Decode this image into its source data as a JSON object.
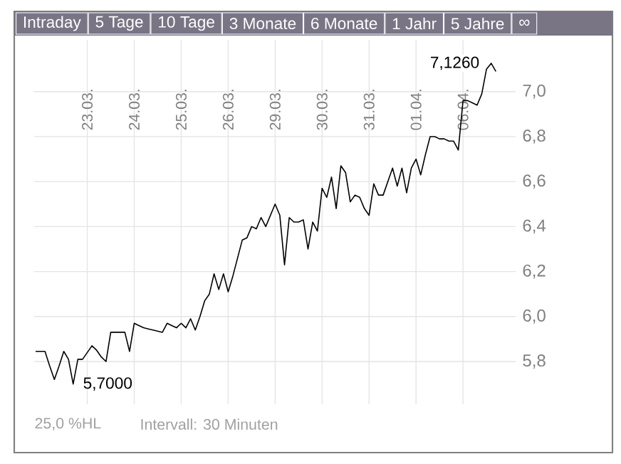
{
  "chart_data": {
    "type": "line",
    "categories": [
      null,
      null,
      null,
      null,
      null,
      null,
      null,
      null,
      null,
      null,
      null,
      "23.03.",
      null,
      null,
      null,
      null,
      null,
      null,
      null,
      null,
      null,
      "24.03.",
      null,
      null,
      null,
      null,
      null,
      null,
      null,
      null,
      null,
      "25.03.",
      null,
      null,
      null,
      null,
      null,
      null,
      null,
      null,
      null,
      "26.03.",
      null,
      null,
      null,
      null,
      null,
      null,
      null,
      null,
      null,
      "29.03.",
      null,
      null,
      null,
      null,
      null,
      null,
      null,
      null,
      null,
      "30.03.",
      null,
      null,
      null,
      null,
      null,
      null,
      null,
      null,
      null,
      "31.03.",
      null,
      null,
      null,
      null,
      null,
      null,
      null,
      null,
      null,
      "01.04.",
      null,
      null,
      null,
      null,
      null,
      null,
      null,
      null,
      null,
      "06.04.",
      null,
      null,
      null,
      null,
      null,
      null,
      null
    ],
    "series": [
      {
        "color": "#000000",
        "values": [
          5.845,
          5.845,
          5.845,
          5.78,
          5.72,
          5.78,
          5.845,
          5.81,
          5.7,
          5.81,
          5.81,
          5.84,
          5.87,
          5.85,
          5.82,
          5.8,
          5.93,
          5.93,
          5.93,
          5.93,
          5.845,
          5.97,
          5.96,
          5.95,
          5.945,
          5.94,
          5.935,
          5.93,
          5.97,
          5.96,
          5.95,
          5.97,
          5.95,
          5.99,
          5.94,
          6.0,
          6.07,
          6.1,
          6.19,
          6.12,
          6.19,
          6.11,
          6.18,
          6.26,
          6.34,
          6.35,
          6.4,
          6.39,
          6.44,
          6.4,
          6.45,
          6.5,
          6.45,
          6.23,
          6.44,
          6.42,
          6.42,
          6.43,
          6.3,
          6.42,
          6.38,
          6.57,
          6.53,
          6.62,
          6.48,
          6.67,
          6.64,
          6.51,
          6.54,
          6.53,
          6.48,
          6.45,
          6.59,
          6.54,
          6.54,
          6.6,
          6.66,
          6.58,
          6.66,
          6.55,
          6.66,
          6.7,
          6.63,
          6.72,
          6.8,
          6.8,
          6.79,
          6.79,
          6.78,
          6.78,
          6.74,
          6.96,
          6.96,
          6.95,
          6.94,
          6.99,
          7.1,
          7.126,
          7.09
        ]
      }
    ],
    "ylim": [
      5.61,
      7.23
    ],
    "yticks": [
      {
        "value": 5.8,
        "label": "5,8"
      },
      {
        "value": 6.0,
        "label": "6,0"
      },
      {
        "value": 6.2,
        "label": "6,2"
      },
      {
        "value": 6.4,
        "label": "6,4"
      },
      {
        "value": 6.6,
        "label": "6,6"
      },
      {
        "value": 6.8,
        "label": "6,8"
      },
      {
        "value": 7.0,
        "label": "7,0"
      }
    ],
    "grid": true,
    "annotations": [
      "5,7000",
      {
        "text": "7,1260",
        "y": 7.126
      },
      "Intraday",
      "5 Tage",
      "10 Tage",
      "3 Monate",
      "6 Monate",
      "1 Jahr",
      "5 Jahre",
      "∞",
      "25,0 %HL",
      "Intervall: 30 Minuten"
    ]
  }
}
